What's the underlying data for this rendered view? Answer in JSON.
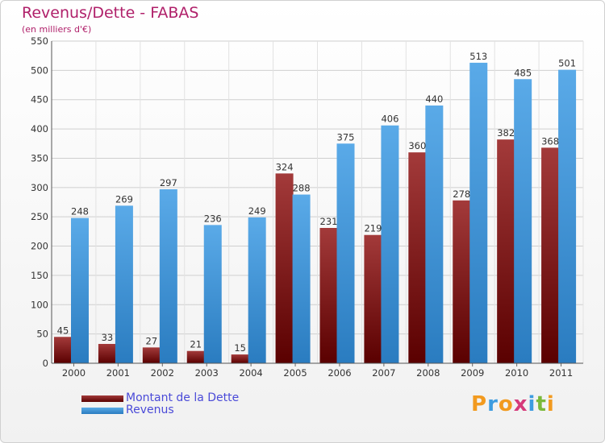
{
  "chart_data": {
    "type": "bar",
    "title": "Revenus/Dette - FABAS",
    "subtitle": "(en milliers d'€)",
    "categories": [
      "2000",
      "2001",
      "2002",
      "2003",
      "2004",
      "2005",
      "2006",
      "2007",
      "2008",
      "2009",
      "2010",
      "2011"
    ],
    "series": [
      {
        "name": "Montant de la Dette",
        "color": "#8b1a1a",
        "values": [
          45,
          33,
          27,
          21,
          15,
          324,
          231,
          219,
          360,
          278,
          382,
          368
        ]
      },
      {
        "name": "Revenus",
        "color": "#3d9ce0",
        "values": [
          248,
          269,
          297,
          236,
          249,
          288,
          375,
          406,
          440,
          513,
          485,
          501
        ]
      }
    ],
    "ylim": [
      0,
      550
    ],
    "yticks": [
      0,
      50,
      100,
      150,
      200,
      250,
      300,
      350,
      400,
      450,
      500,
      550
    ],
    "grid": true,
    "legend": "bottom-left"
  },
  "logo": {
    "text": "Proxiti",
    "letters": [
      "P",
      "r",
      "o",
      "x",
      "i",
      "t",
      "i"
    ],
    "colors": [
      "#f29a1f",
      "#3d9ce0",
      "#f29a1f",
      "#d63a7a",
      "#3d9ce0",
      "#7ab93a",
      "#f29a1f"
    ]
  }
}
